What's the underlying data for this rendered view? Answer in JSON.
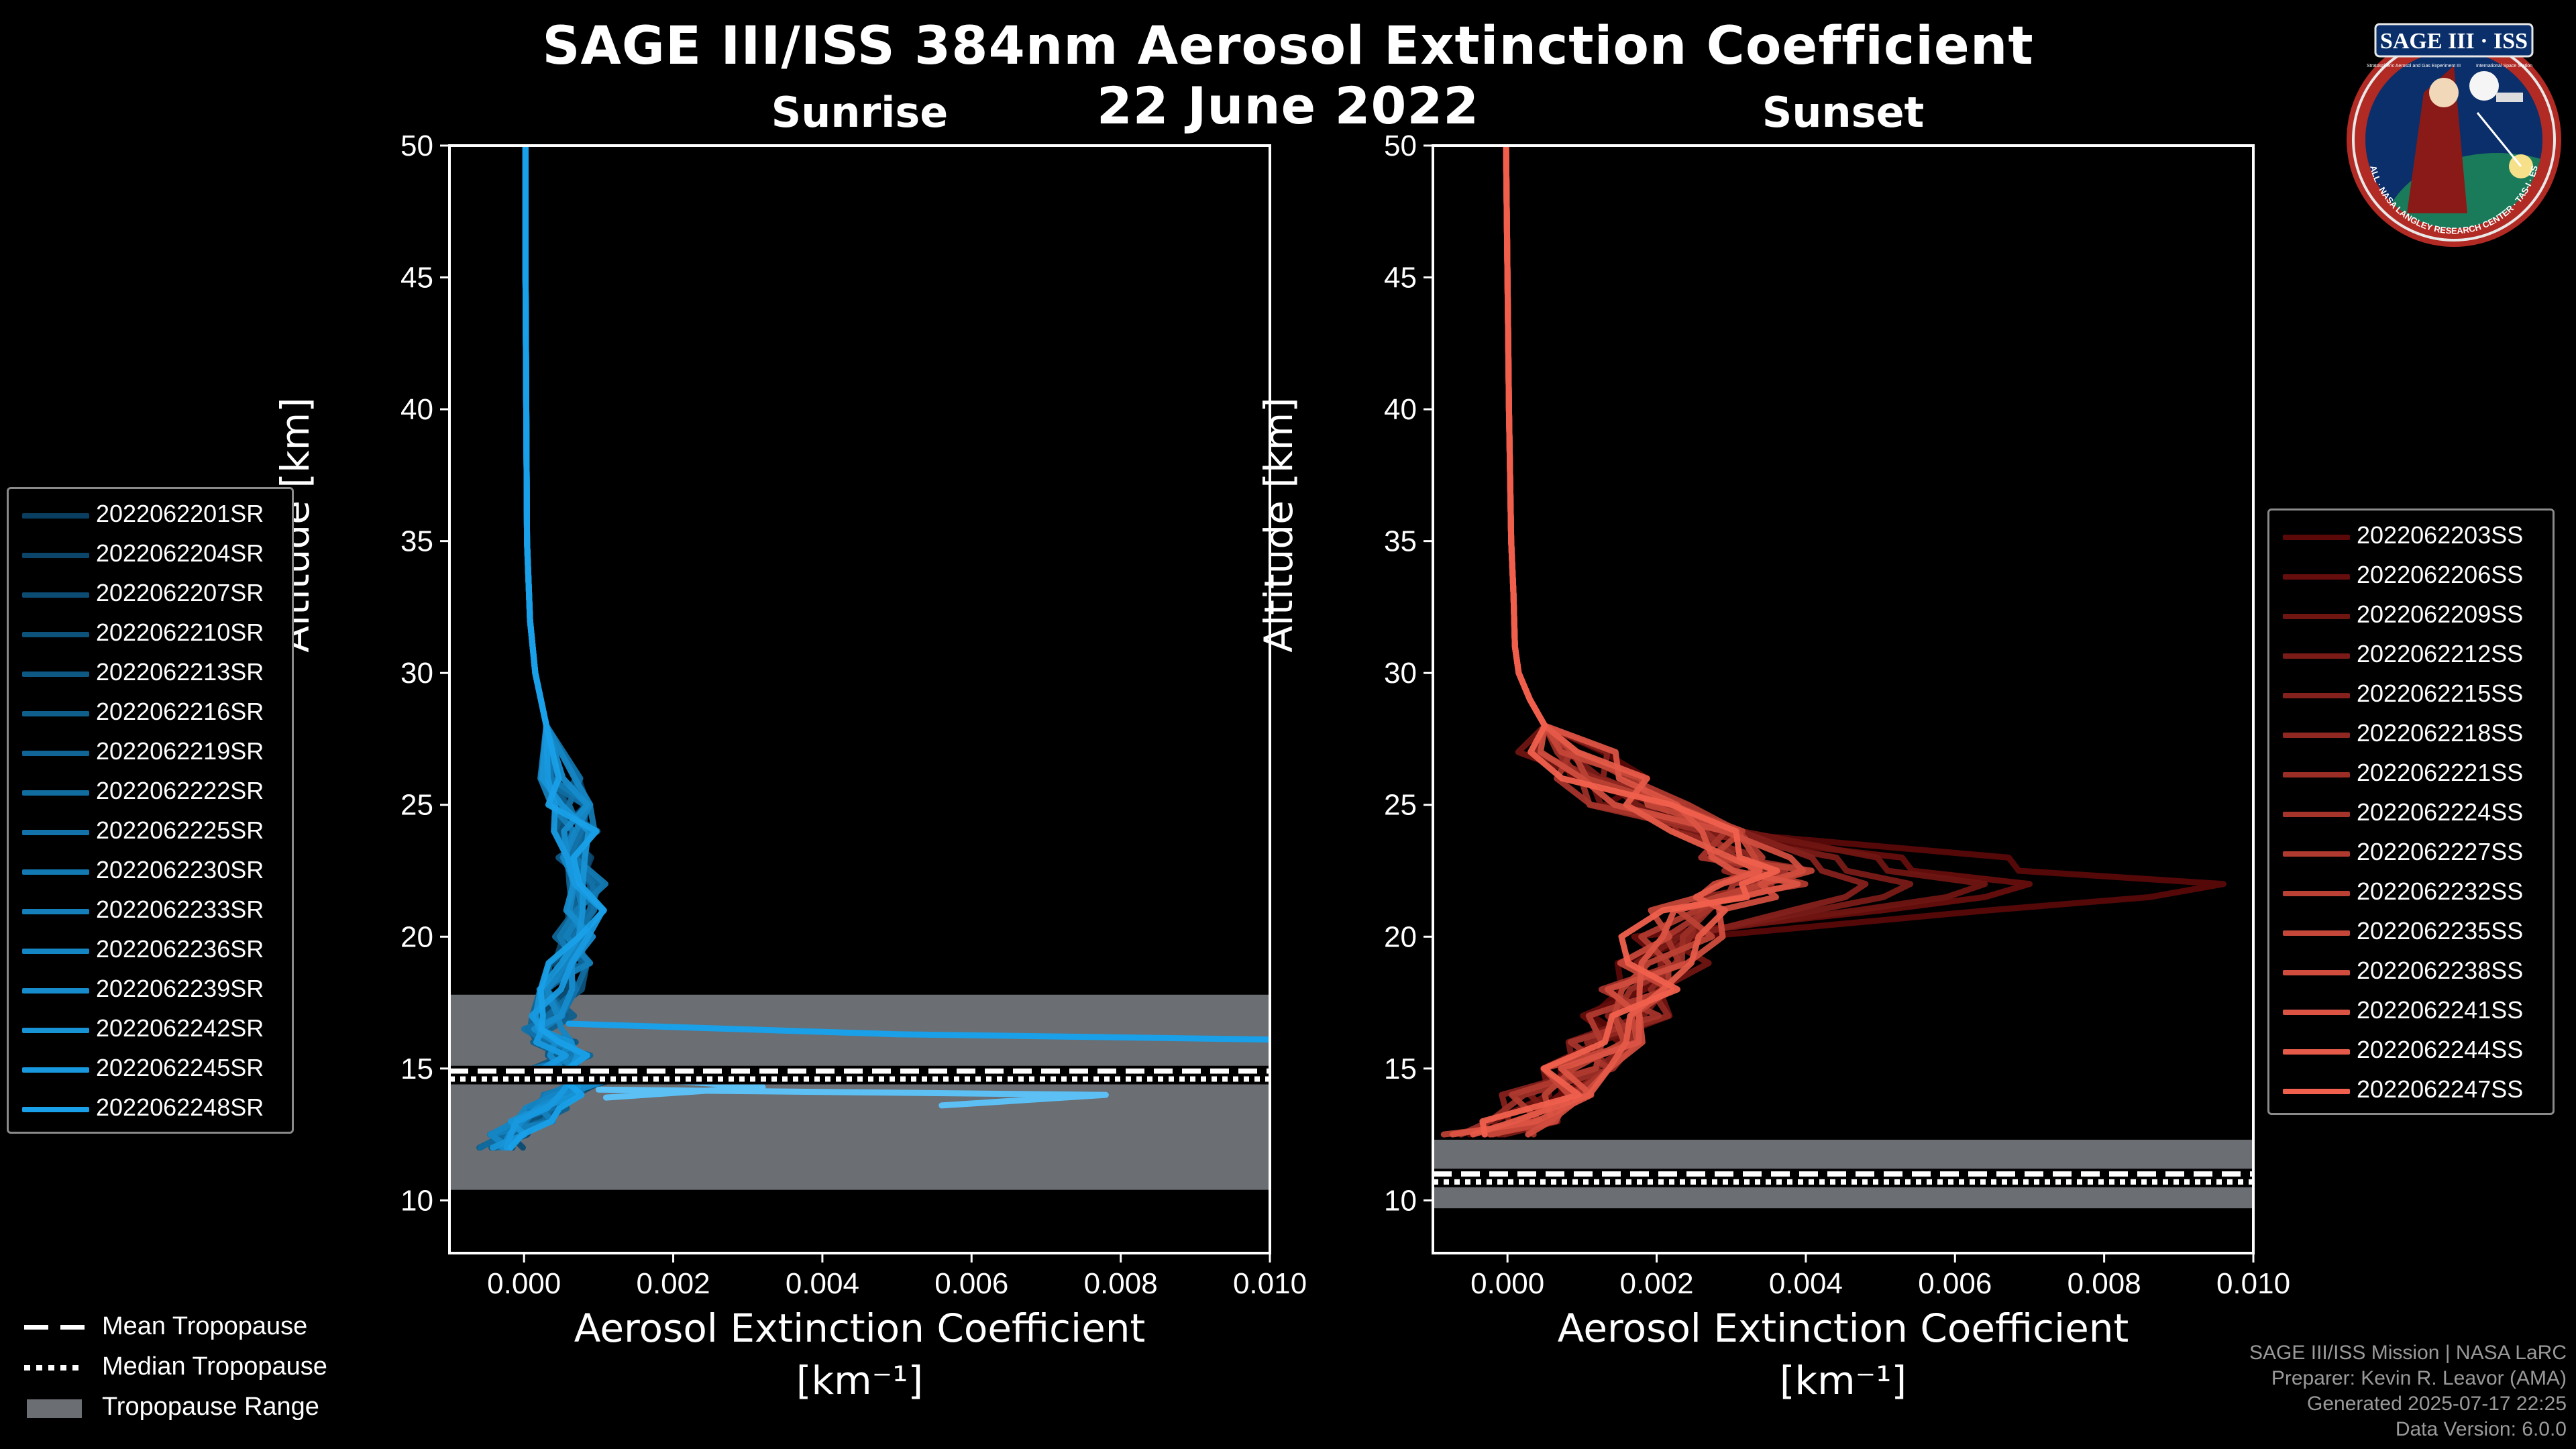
{
  "figure": {
    "title_line1": "SAGE III/ISS 384nm Aerosol Extinction Coefficient",
    "title_line2": "22 June 2022",
    "logo": {
      "top_text": "SAGE III · ISS",
      "ring_text": "BALL · NASA LANGLEY RESEARCH CENTER · TAS-I · ESA",
      "small_left": "Stratospheric Aerosol and Gas Experiment III",
      "small_right": "International Space Station"
    },
    "footer": [
      "SAGE III/ISS Mission | NASA LaRC",
      "Preparer: Kevin R. Leavor (AMA)",
      "Generated 2025-07-17 22:25",
      "Data Version: 6.0.0"
    ],
    "tropopause_legend": [
      {
        "label": "Mean Tropopause",
        "style": "dashed"
      },
      {
        "label": "Median Tropopause",
        "style": "dotted"
      },
      {
        "label": "Tropopause Range",
        "style": "patch"
      }
    ],
    "colors": {
      "sunrise_dark": "#0a3e60",
      "sunrise_light": "#19a0e8",
      "sunrise_pale": "#5cc0f5",
      "sunset_dark": "#5a0808",
      "sunset_light": "#f0604d",
      "tropopause_fill": "#6b6e73"
    }
  },
  "chart_data": [
    {
      "type": "line",
      "title": "Sunrise",
      "xlabel": "Aerosol Extinction Coefficient",
      "xlabel_units": "[km⁻¹]",
      "ylabel": "Altitude [km]",
      "xlim": [
        -0.001,
        0.01
      ],
      "ylim": [
        8,
        50
      ],
      "xticks": [
        0.0,
        0.002,
        0.004,
        0.006,
        0.008,
        0.01
      ],
      "xtick_labels": [
        "0.000",
        "0.002",
        "0.004",
        "0.006",
        "0.008",
        "0.010"
      ],
      "yticks": [
        10,
        15,
        20,
        25,
        30,
        35,
        40,
        45,
        50
      ],
      "tropopause": {
        "range": [
          10.4,
          17.8
        ],
        "mean": 14.9,
        "median": 14.6
      },
      "legend_position": "left",
      "series": [
        {
          "name": "2022062201SR"
        },
        {
          "name": "2022062204SR"
        },
        {
          "name": "2022062207SR"
        },
        {
          "name": "2022062210SR"
        },
        {
          "name": "2022062213SR"
        },
        {
          "name": "2022062216SR"
        },
        {
          "name": "2022062219SR"
        },
        {
          "name": "2022062222SR"
        },
        {
          "name": "2022062225SR"
        },
        {
          "name": "2022062230SR"
        },
        {
          "name": "2022062233SR"
        },
        {
          "name": "2022062236SR"
        },
        {
          "name": "2022062239SR"
        },
        {
          "name": "2022062242SR"
        },
        {
          "name": "2022062245SR"
        },
        {
          "name": "2022062248SR"
        }
      ],
      "profile": {
        "altitude": [
          50,
          45,
          40,
          35,
          32,
          30,
          28,
          26,
          25,
          24,
          23,
          22,
          21,
          20,
          19,
          18,
          17,
          16.5,
          16,
          15.5,
          15,
          14.5,
          14,
          13.5,
          13,
          12.5,
          12
        ],
        "extinction": [
          2e-05,
          2e-05,
          3e-05,
          4e-05,
          8e-05,
          0.00015,
          0.0003,
          0.0005,
          0.0006,
          0.0007,
          0.0007,
          0.0008,
          0.0008,
          0.0007,
          0.0006,
          0.0005,
          0.0004,
          0.0003,
          0.0004,
          0.0006,
          0.0004,
          0.0008,
          0.0005,
          0.0003,
          0.0001,
          -0.0002,
          -0.0003
        ]
      },
      "outliers": [
        {
          "altitude": [
            16.7,
            16.3,
            16.1
          ],
          "extinction": [
            0.0006,
            0.005,
            0.01
          ]
        },
        {
          "altitude": [
            14.2,
            14.0,
            13.6
          ],
          "extinction": [
            0.001,
            0.0078,
            0.0056
          ]
        },
        {
          "altitude": [
            14.8,
            14.3,
            13.9
          ],
          "extinction": [
            0.0005,
            0.0032,
            0.0011
          ]
        }
      ]
    },
    {
      "type": "line",
      "title": "Sunset",
      "xlabel": "Aerosol Extinction Coefficient",
      "xlabel_units": "[km⁻¹]",
      "ylabel": "Altitude [km]",
      "xlim": [
        -0.001,
        0.01
      ],
      "ylim": [
        8,
        50
      ],
      "xticks": [
        0.0,
        0.002,
        0.004,
        0.006,
        0.008,
        0.01
      ],
      "xtick_labels": [
        "0.000",
        "0.002",
        "0.004",
        "0.006",
        "0.008",
        "0.010"
      ],
      "yticks": [
        10,
        15,
        20,
        25,
        30,
        35,
        40,
        45,
        50
      ],
      "tropopause": {
        "range": [
          9.7,
          12.3
        ],
        "mean": 11.0,
        "median": 10.7
      },
      "legend_position": "right",
      "series": [
        {
          "name": "2022062203SS"
        },
        {
          "name": "2022062206SS"
        },
        {
          "name": "2022062209SS"
        },
        {
          "name": "2022062212SS"
        },
        {
          "name": "2022062215SS"
        },
        {
          "name": "2022062218SS"
        },
        {
          "name": "2022062221SS"
        },
        {
          "name": "2022062224SS"
        },
        {
          "name": "2022062227SS"
        },
        {
          "name": "2022062232SS"
        },
        {
          "name": "2022062235SS"
        },
        {
          "name": "2022062238SS"
        },
        {
          "name": "2022062241SS"
        },
        {
          "name": "2022062244SS"
        },
        {
          "name": "2022062247SS"
        }
      ],
      "profile": {
        "altitude": [
          50,
          45,
          40,
          35,
          33,
          31,
          30,
          29,
          28,
          27,
          26,
          25,
          24,
          23,
          22.5,
          22,
          21.5,
          21,
          20,
          19,
          18,
          17,
          16,
          15,
          14,
          13,
          12.5
        ],
        "extinction": [
          -2e-05,
          0.0,
          2e-05,
          5e-05,
          8e-05,
          0.0001,
          0.00015,
          0.0003,
          0.0005,
          0.0008,
          0.0012,
          0.0018,
          0.0026,
          0.0032,
          0.0035,
          0.0034,
          0.003,
          0.0026,
          0.0022,
          0.002,
          0.0018,
          0.0016,
          0.0012,
          0.001,
          0.0006,
          0.0002,
          -0.0002
        ]
      },
      "peaks": [
        9.6,
        7.0,
        6.4,
        5.4,
        4.8
      ]
    }
  ]
}
